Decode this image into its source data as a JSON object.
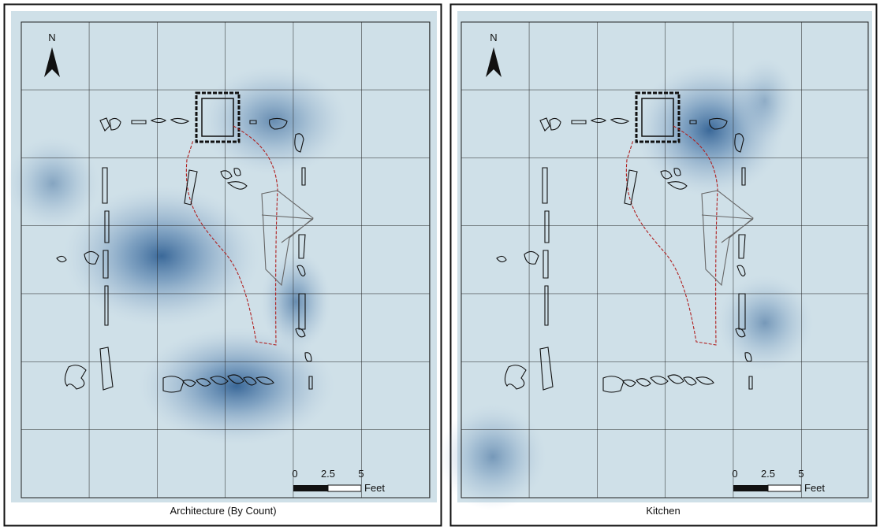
{
  "panels": [
    {
      "caption": "Architecture (By Count)",
      "north": "N",
      "scale": {
        "ticks": [
          "0",
          "2.5",
          "5"
        ],
        "unit": "Feet"
      }
    },
    {
      "caption": "Kitchen",
      "north": "N",
      "scale": {
        "ticks": [
          "0",
          "2.5",
          "5"
        ],
        "unit": "Feet"
      }
    }
  ]
}
